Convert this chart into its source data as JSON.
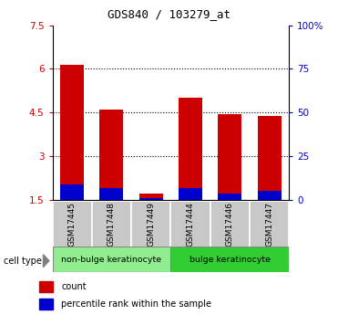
{
  "title": "GDS840 / 103279_at",
  "samples": [
    "GSM17445",
    "GSM17448",
    "GSM17449",
    "GSM17444",
    "GSM17446",
    "GSM17447"
  ],
  "red_values": [
    6.15,
    4.6,
    1.72,
    5.0,
    4.45,
    4.4
  ],
  "blue_values": [
    2.05,
    1.92,
    1.58,
    1.92,
    1.72,
    1.82
  ],
  "bar_bottom": 1.5,
  "ylim_left": [
    1.5,
    7.5
  ],
  "ylim_right": [
    0,
    100
  ],
  "yticks_left": [
    1.5,
    3.0,
    4.5,
    6.0,
    7.5
  ],
  "ytick_labels_left": [
    "1.5",
    "3",
    "4.5",
    "6",
    "7.5"
  ],
  "yticks_right": [
    0,
    25,
    50,
    75,
    100
  ],
  "ytick_labels_right": [
    "0",
    "25",
    "50",
    "75",
    "100%"
  ],
  "grid_yticks": [
    3.0,
    4.5,
    6.0
  ],
  "group_labels": [
    "non-bulge keratinocyte",
    "bulge keratinocyte"
  ],
  "group_colors": [
    "#90ee90",
    "#32cd32"
  ],
  "cell_type_label": "cell type",
  "legend_items": [
    "count",
    "percentile rank within the sample"
  ],
  "bar_width": 0.6,
  "red_color": "#cc0000",
  "blue_color": "#0000cc",
  "tick_color_left": "#cc0000",
  "tick_color_right": "#0000cc",
  "xticklabel_bg": "#c8c8c8",
  "figsize": [
    3.71,
    3.45
  ],
  "dpi": 100
}
